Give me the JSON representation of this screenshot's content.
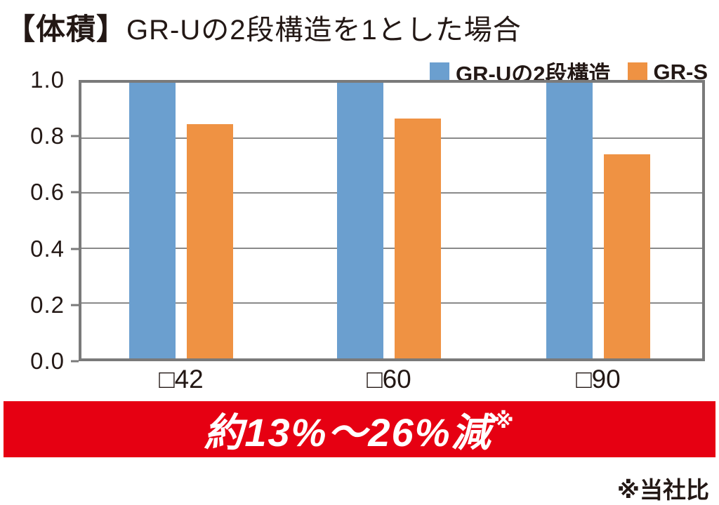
{
  "title": {
    "bracket": "【体積】",
    "rest": "GR-Uの2段構造を1とした場合"
  },
  "legend": [
    {
      "label": "GR-Uの2段構造",
      "color": "#6b9fcf"
    },
    {
      "label": "GR-S",
      "color": "#ef9243"
    }
  ],
  "chart_data": {
    "type": "bar",
    "title": "【体積】GR-Uの2段構造を1とした場合",
    "categories": [
      "□42",
      "□60",
      "□90"
    ],
    "series": [
      {
        "name": "GR-Uの2段構造",
        "color": "#6b9fcf",
        "values": [
          1.0,
          1.0,
          1.0
        ]
      },
      {
        "name": "GR-S",
        "color": "#ef9243",
        "values": [
          0.85,
          0.87,
          0.74
        ]
      }
    ],
    "ylim": [
      0.0,
      1.0
    ],
    "yticks": [
      "1.0",
      "0.8",
      "0.6",
      "0.4",
      "0.2",
      "0.0"
    ],
    "grid": true,
    "legend_position": "top-right"
  },
  "banner": {
    "text": "約13%〜26%減",
    "note_mark": "※",
    "background": "#e60012"
  },
  "footnote": "※当社比",
  "colors": {
    "bar_blue": "#6b9fcf",
    "bar_orange": "#ef9243",
    "banner_red": "#e60012",
    "text_dark": "#231815",
    "border_gray": "#7a7a7a"
  }
}
